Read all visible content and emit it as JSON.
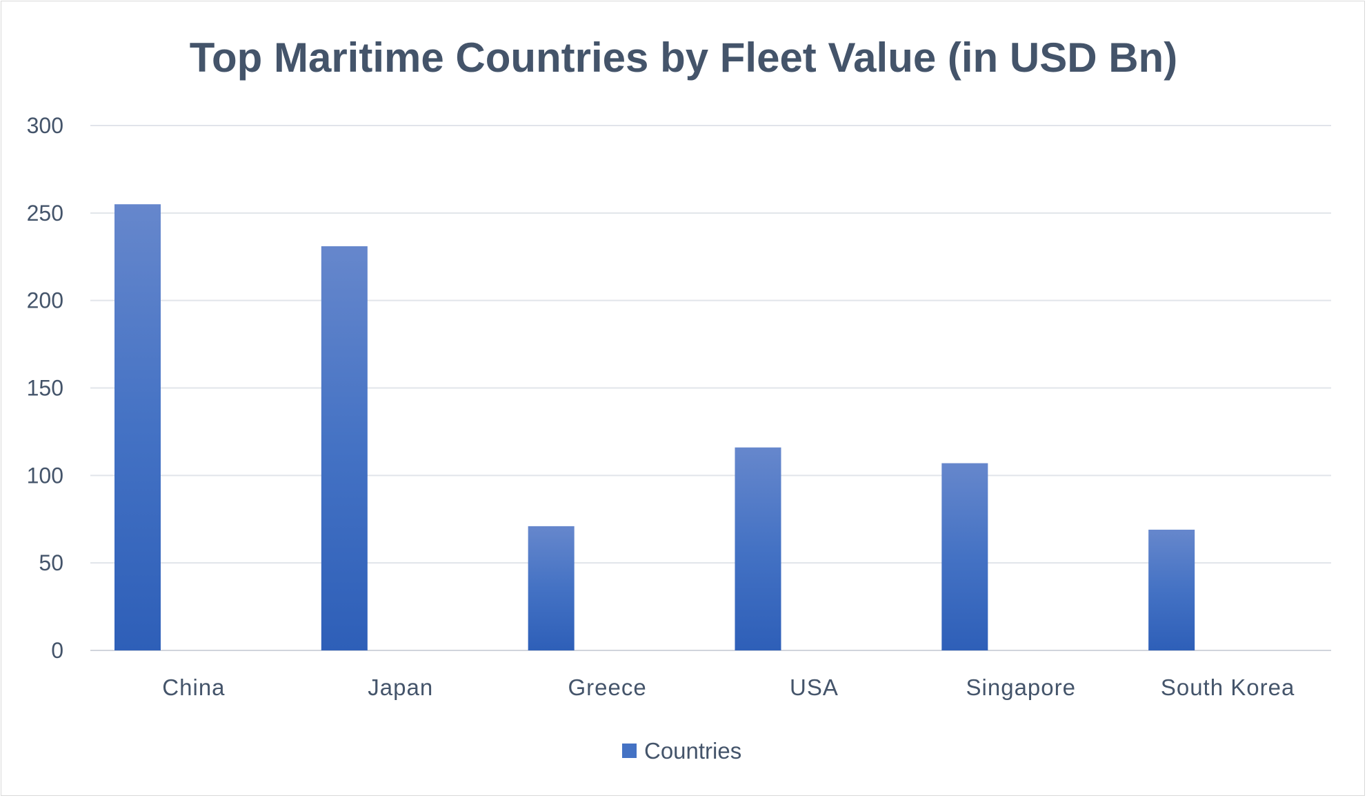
{
  "chart_data": {
    "type": "bar",
    "title": "Top Maritime Countries by Fleet Value (in USD Bn)",
    "xlabel": "",
    "ylabel": "",
    "categories": [
      "China",
      "Japan",
      "Greece",
      "USA",
      "Singapore",
      "South Korea"
    ],
    "series": [
      {
        "name": "Countries",
        "values": [
          255,
          231,
          71,
          116,
          107,
          69
        ],
        "color": "#4472c4"
      }
    ],
    "ylim": [
      0,
      300
    ],
    "yticks": [
      0,
      50,
      100,
      150,
      200,
      250,
      300
    ],
    "grid": true,
    "legend_position": "bottom"
  }
}
